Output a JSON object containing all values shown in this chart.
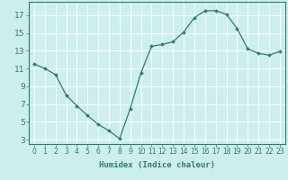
{
  "x": [
    0,
    1,
    2,
    3,
    4,
    5,
    6,
    7,
    8,
    9,
    10,
    11,
    12,
    13,
    14,
    15,
    16,
    17,
    18,
    19,
    20,
    21,
    22,
    23
  ],
  "y": [
    11.5,
    11.0,
    10.3,
    8.0,
    6.8,
    5.7,
    4.7,
    4.0,
    3.1,
    6.5,
    10.5,
    13.5,
    13.7,
    14.0,
    15.1,
    16.7,
    17.5,
    17.5,
    17.1,
    15.5,
    13.2,
    12.7,
    12.5,
    12.9
  ],
  "line_color": "#2e7d6e",
  "marker": "D",
  "marker_size": 2.0,
  "bg_color": "#cceeed",
  "grid_color": "#ffffff",
  "xlabel": "Humidex (Indice chaleur)",
  "xlabel_fontsize": 6.5,
  "xtick_labels": [
    "0",
    "1",
    "2",
    "3",
    "4",
    "5",
    "6",
    "7",
    "8",
    "9",
    "10",
    "11",
    "12",
    "13",
    "14",
    "15",
    "16",
    "17",
    "18",
    "19",
    "20",
    "21",
    "22",
    "23"
  ],
  "ytick_values": [
    3,
    5,
    7,
    9,
    11,
    13,
    15,
    17
  ],
  "xlim": [
    -0.5,
    23.5
  ],
  "ylim": [
    2.5,
    18.5
  ],
  "tick_color": "#2e7d6e",
  "axis_color": "#2e7d6e",
  "tick_fontsize": 5.5,
  "ytick_fontsize": 6.5
}
